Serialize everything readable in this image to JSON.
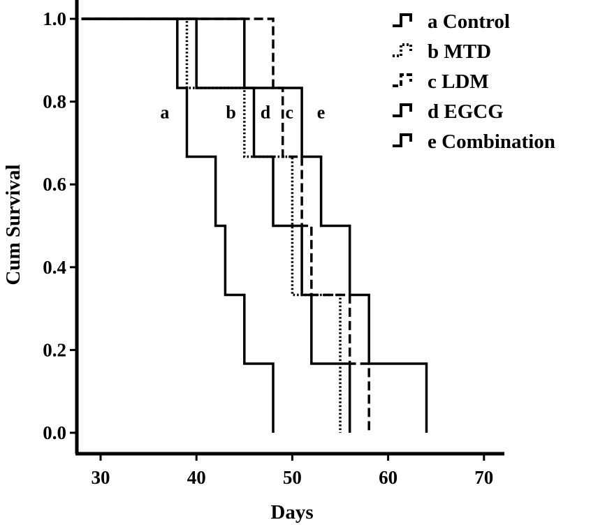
{
  "chart_data": {
    "type": "line",
    "step": true,
    "xlabel": "Days",
    "ylabel": "Cum Survival",
    "xlim": [
      28,
      72
    ],
    "ylim": [
      0,
      1
    ],
    "xticks": [
      "30",
      "40",
      "50",
      "60",
      "70"
    ],
    "yticks": [
      "0.0",
      "0.2",
      "0.4",
      "0.6",
      "0.8",
      "1.0"
    ],
    "legend_position": "top-right",
    "series": [
      {
        "name": "a Control",
        "label": "a",
        "dash": "solid",
        "points": [
          [
            28,
            1.0
          ],
          [
            38,
            1.0
          ],
          [
            38,
            0.833
          ],
          [
            39,
            0.833
          ],
          [
            39,
            0.667
          ],
          [
            42,
            0.667
          ],
          [
            42,
            0.5
          ],
          [
            43,
            0.5
          ],
          [
            43,
            0.333
          ],
          [
            45,
            0.333
          ],
          [
            45,
            0.167
          ],
          [
            48,
            0.167
          ],
          [
            48,
            0.0
          ]
        ]
      },
      {
        "name": "b MTD",
        "label": "b",
        "dash": "dotted",
        "points": [
          [
            28,
            1.0
          ],
          [
            39,
            1.0
          ],
          [
            39,
            0.833
          ],
          [
            45,
            0.833
          ],
          [
            45,
            0.667
          ],
          [
            50,
            0.667
          ],
          [
            50,
            0.333
          ],
          [
            55,
            0.333
          ],
          [
            55,
            0.0
          ]
        ]
      },
      {
        "name": "c LDM",
        "label": "c",
        "dash": "dashed",
        "points": [
          [
            28,
            1.0
          ],
          [
            48,
            1.0
          ],
          [
            48,
            0.833
          ],
          [
            49,
            0.833
          ],
          [
            49,
            0.667
          ],
          [
            51,
            0.667
          ],
          [
            51,
            0.5
          ],
          [
            52,
            0.5
          ],
          [
            52,
            0.333
          ],
          [
            56,
            0.333
          ],
          [
            56,
            0.167
          ],
          [
            58,
            0.167
          ],
          [
            58,
            0.0
          ]
        ]
      },
      {
        "name": "d EGCG",
        "label": "d",
        "dash": "solid",
        "points": [
          [
            28,
            1.0
          ],
          [
            40,
            1.0
          ],
          [
            40,
            0.833
          ],
          [
            46,
            0.833
          ],
          [
            46,
            0.667
          ],
          [
            48,
            0.667
          ],
          [
            48,
            0.5
          ],
          [
            51,
            0.5
          ],
          [
            51,
            0.333
          ],
          [
            52,
            0.333
          ],
          [
            52,
            0.167
          ],
          [
            56,
            0.167
          ],
          [
            56,
            0.0
          ]
        ]
      },
      {
        "name": "e Combination",
        "label": "e",
        "dash": "solid",
        "points": [
          [
            28,
            1.0
          ],
          [
            45,
            1.0
          ],
          [
            45,
            0.833
          ],
          [
            51,
            0.833
          ],
          [
            51,
            0.667
          ],
          [
            53,
            0.667
          ],
          [
            53,
            0.5
          ],
          [
            56,
            0.5
          ],
          [
            56,
            0.333
          ],
          [
            58,
            0.333
          ],
          [
            58,
            0.167
          ],
          [
            64,
            0.167
          ],
          [
            64,
            0.0
          ]
        ]
      }
    ],
    "curve_labels": [
      {
        "text": "a",
        "x": 36.7,
        "y": 0.76
      },
      {
        "text": "b",
        "x": 43.6,
        "y": 0.76
      },
      {
        "text": "d",
        "x": 47.2,
        "y": 0.76
      },
      {
        "text": "c",
        "x": 49.7,
        "y": 0.76
      },
      {
        "text": "e",
        "x": 53.0,
        "y": 0.76
      }
    ]
  }
}
